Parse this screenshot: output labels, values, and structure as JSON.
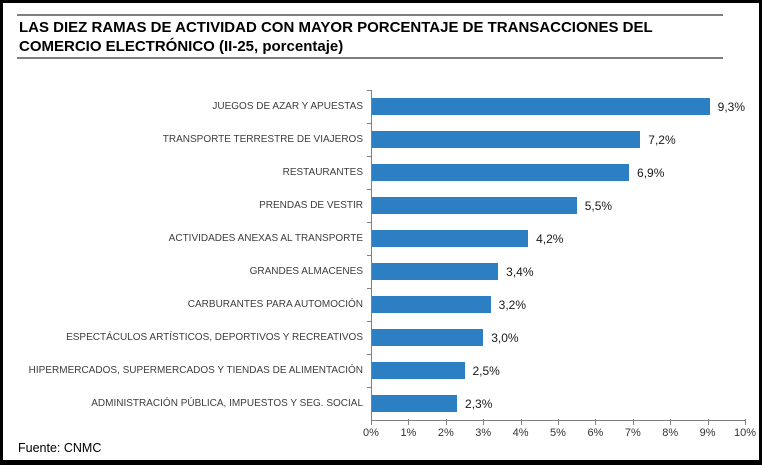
{
  "header": {
    "title_line1": "LAS DIEZ RAMAS DE ACTIVIDAD CON MAYOR PORCENTAJE DE TRANSACCIONES DEL",
    "title_line2": "COMERCIO ELECTRÓNICO (II-25, porcentaje)"
  },
  "footer": {
    "source": "Fuente: CNMC"
  },
  "chart_data": {
    "type": "bar",
    "orientation": "horizontal",
    "title": "LAS DIEZ RAMAS DE ACTIVIDAD CON MAYOR PORCENTAJE DE TRANSACCIONES DEL COMERCIO ELECTRÓNICO (II-25, porcentaje)",
    "categories": [
      "JUEGOS DE AZAR Y APUESTAS",
      "TRANSPORTE TERRESTRE DE VIAJEROS",
      "RESTAURANTES",
      "PRENDAS DE VESTIR",
      "ACTIVIDADES ANEXAS AL TRANSPORTE",
      "GRANDES ALMACENES",
      "CARBURANTES PARA AUTOMOCIÓN",
      "ESPECTÁCULOS ARTÍSTICOS, DEPORTIVOS Y RECREATIVOS",
      "HIPERMERCADOS, SUPERMERCADOS Y TIENDAS DE ALIMENTACIÓN",
      "ADMINISTRACIÓN PÚBLICA, IMPUESTOS Y SEG. SOCIAL"
    ],
    "values": [
      9.3,
      7.2,
      6.9,
      5.5,
      4.2,
      3.4,
      3.2,
      3.0,
      2.5,
      2.3
    ],
    "value_labels": [
      "9,3%",
      "7,2%",
      "6,9%",
      "5,5%",
      "4,2%",
      "3,4%",
      "3,2%",
      "3,0%",
      "2,5%",
      "2,3%"
    ],
    "x_axis": {
      "ticks": [
        "0%",
        "1%",
        "2%",
        "3%",
        "4%",
        "5%",
        "6%",
        "7%",
        "8%",
        "9%",
        "10%"
      ],
      "xlim": [
        0,
        10
      ]
    },
    "grid": false,
    "legend": "none",
    "bar_color": "#2b7fc2",
    "axis_color": "#808080",
    "source": "Fuente: CNMC"
  }
}
